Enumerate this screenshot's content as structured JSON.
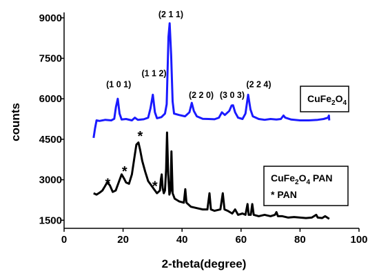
{
  "chart_data": {
    "type": "line",
    "xlabel": "2-theta(degree)",
    "ylabel": "counts",
    "xlim": [
      0,
      100
    ],
    "ylim": [
      1200,
      9200
    ],
    "x_ticks": [
      "0",
      "20",
      "40",
      "60",
      "80",
      "100"
    ],
    "y_ticks": [
      "1500",
      "3000",
      "4500",
      "6000",
      "7500",
      "9000"
    ],
    "grid": false,
    "series": [
      {
        "name": "CuFe2O4",
        "color": "#1a1aff",
        "points": [
          [
            10,
            4550
          ],
          [
            10.5,
            4900
          ],
          [
            11,
            5200
          ],
          [
            12,
            5180
          ],
          [
            14,
            5220
          ],
          [
            16,
            5200
          ],
          [
            17,
            5260
          ],
          [
            17.6,
            5700
          ],
          [
            18.2,
            6000
          ],
          [
            18.8,
            5450
          ],
          [
            19.5,
            5230
          ],
          [
            21,
            5250
          ],
          [
            23,
            5200
          ],
          [
            24,
            5300
          ],
          [
            25,
            5220
          ],
          [
            27,
            5240
          ],
          [
            28.5,
            5300
          ],
          [
            29.3,
            5650
          ],
          [
            30.1,
            6150
          ],
          [
            30.8,
            5500
          ],
          [
            31.5,
            5280
          ],
          [
            33,
            5320
          ],
          [
            34.2,
            5450
          ],
          [
            34.8,
            5800
          ],
          [
            35.4,
            8300
          ],
          [
            35.8,
            8800
          ],
          [
            36.3,
            7600
          ],
          [
            36.8,
            5900
          ],
          [
            37.3,
            5450
          ],
          [
            39,
            5400
          ],
          [
            41,
            5350
          ],
          [
            42.5,
            5500
          ],
          [
            43.3,
            5850
          ],
          [
            44,
            5550
          ],
          [
            45,
            5350
          ],
          [
            47,
            5260
          ],
          [
            49,
            5250
          ],
          [
            51,
            5240
          ],
          [
            52.5,
            5300
          ],
          [
            53.5,
            5500
          ],
          [
            54.5,
            5400
          ],
          [
            56,
            5550
          ],
          [
            56.8,
            5750
          ],
          [
            57.3,
            5760
          ],
          [
            58,
            5500
          ],
          [
            59,
            5300
          ],
          [
            60.5,
            5250
          ],
          [
            61.5,
            5450
          ],
          [
            62.4,
            6150
          ],
          [
            63.2,
            5600
          ],
          [
            64,
            5350
          ],
          [
            66,
            5250
          ],
          [
            68,
            5220
          ],
          [
            70,
            5250
          ],
          [
            72,
            5230
          ],
          [
            73.5,
            5250
          ],
          [
            74.4,
            5380
          ],
          [
            75,
            5300
          ],
          [
            77,
            5230
          ],
          [
            80,
            5200
          ],
          [
            83,
            5200
          ],
          [
            86,
            5220
          ],
          [
            88,
            5250
          ],
          [
            89.5,
            5300
          ],
          [
            89.8,
            5380
          ],
          [
            89.9,
            5200
          ]
        ]
      },
      {
        "name": "CuFe2O4 PAN",
        "color": "#000000",
        "points": [
          [
            10,
            2500
          ],
          [
            11,
            2450
          ],
          [
            12,
            2520
          ],
          [
            13,
            2600
          ],
          [
            13.8,
            2750
          ],
          [
            14.6,
            2900
          ],
          [
            15.5,
            2800
          ],
          [
            16.5,
            2550
          ],
          [
            17.5,
            2600
          ],
          [
            18.5,
            2900
          ],
          [
            19.5,
            3200
          ],
          [
            20.3,
            3050
          ],
          [
            21,
            2900
          ],
          [
            22,
            2850
          ],
          [
            23,
            3200
          ],
          [
            23.8,
            3800
          ],
          [
            24.5,
            4300
          ],
          [
            25.2,
            4380
          ],
          [
            25.8,
            4100
          ],
          [
            26.5,
            3700
          ],
          [
            27.5,
            3300
          ],
          [
            28.5,
            2950
          ],
          [
            29.5,
            2800
          ],
          [
            30.5,
            2650
          ],
          [
            31.5,
            2500
          ],
          [
            32.5,
            2600
          ],
          [
            32.8,
            3000
          ],
          [
            33.1,
            3200
          ],
          [
            33.4,
            2700
          ],
          [
            33.8,
            2500
          ],
          [
            34.2,
            2600
          ],
          [
            34.6,
            3400
          ],
          [
            34.9,
            4750
          ],
          [
            35.3,
            3200
          ],
          [
            35.7,
            2450
          ],
          [
            36.1,
            2600
          ],
          [
            36.4,
            4050
          ],
          [
            36.8,
            2500
          ],
          [
            37.5,
            2300
          ],
          [
            39,
            2200
          ],
          [
            40.6,
            2150
          ],
          [
            41.1,
            2650
          ],
          [
            41.5,
            2150
          ],
          [
            43,
            2000
          ],
          [
            45,
            1950
          ],
          [
            47,
            1900
          ],
          [
            48.6,
            1900
          ],
          [
            49.3,
            2500
          ],
          [
            49.8,
            1900
          ],
          [
            51,
            1850
          ],
          [
            53,
            1900
          ],
          [
            53.8,
            2500
          ],
          [
            54.4,
            1900
          ],
          [
            55.5,
            1850
          ],
          [
            57,
            1750
          ],
          [
            58,
            1900
          ],
          [
            59,
            1700
          ],
          [
            60.5,
            1750
          ],
          [
            61.5,
            1700
          ],
          [
            62.2,
            2100
          ],
          [
            62.6,
            1700
          ],
          [
            63.3,
            1700
          ],
          [
            63.8,
            2100
          ],
          [
            64.3,
            1700
          ],
          [
            66,
            1650
          ],
          [
            68,
            1700
          ],
          [
            70,
            1650
          ],
          [
            71.5,
            1700
          ],
          [
            72,
            1800
          ],
          [
            72.5,
            1650
          ],
          [
            74,
            1650
          ],
          [
            76,
            1600
          ],
          [
            78,
            1620
          ],
          [
            80,
            1600
          ],
          [
            82,
            1580
          ],
          [
            84,
            1600
          ],
          [
            85.5,
            1700
          ],
          [
            86,
            1600
          ],
          [
            87.5,
            1580
          ],
          [
            88.5,
            1650
          ],
          [
            89.9,
            1550
          ]
        ]
      }
    ],
    "peak_labels": [
      {
        "text": "(1 0 1)",
        "x": 18.5,
        "y": 6430
      },
      {
        "text": "(1 1 2)",
        "x": 30.5,
        "y": 6830
      },
      {
        "text": "(2 1 1)",
        "x": 36.2,
        "y": 9020
      },
      {
        "text": "(2 2 0)",
        "x": 46.5,
        "y": 6030
      },
      {
        "text": "(3 0 3)",
        "x": 57.0,
        "y": 6030
      },
      {
        "text": "(2 2 4)",
        "x": 66.0,
        "y": 6430
      }
    ],
    "star_markers": [
      {
        "text": "*",
        "x": 14.8,
        "y": 3000
      },
      {
        "text": "*",
        "x": 20.5,
        "y": 3450
      },
      {
        "text": "*",
        "x": 25.8,
        "y": 4750
      },
      {
        "text": "*",
        "x": 30.8,
        "y": 2900
      }
    ],
    "legends": [
      {
        "id": "legend-cufe2o4",
        "main": "CuFe",
        "sub": "2",
        "tail": "O",
        "sub2": "4",
        "extra": ""
      },
      {
        "id": "legend-pan",
        "main": "CuFe",
        "sub": "2",
        "tail": "O",
        "sub2": "4",
        "extra": " PAN",
        "line2": "* PAN"
      }
    ]
  }
}
